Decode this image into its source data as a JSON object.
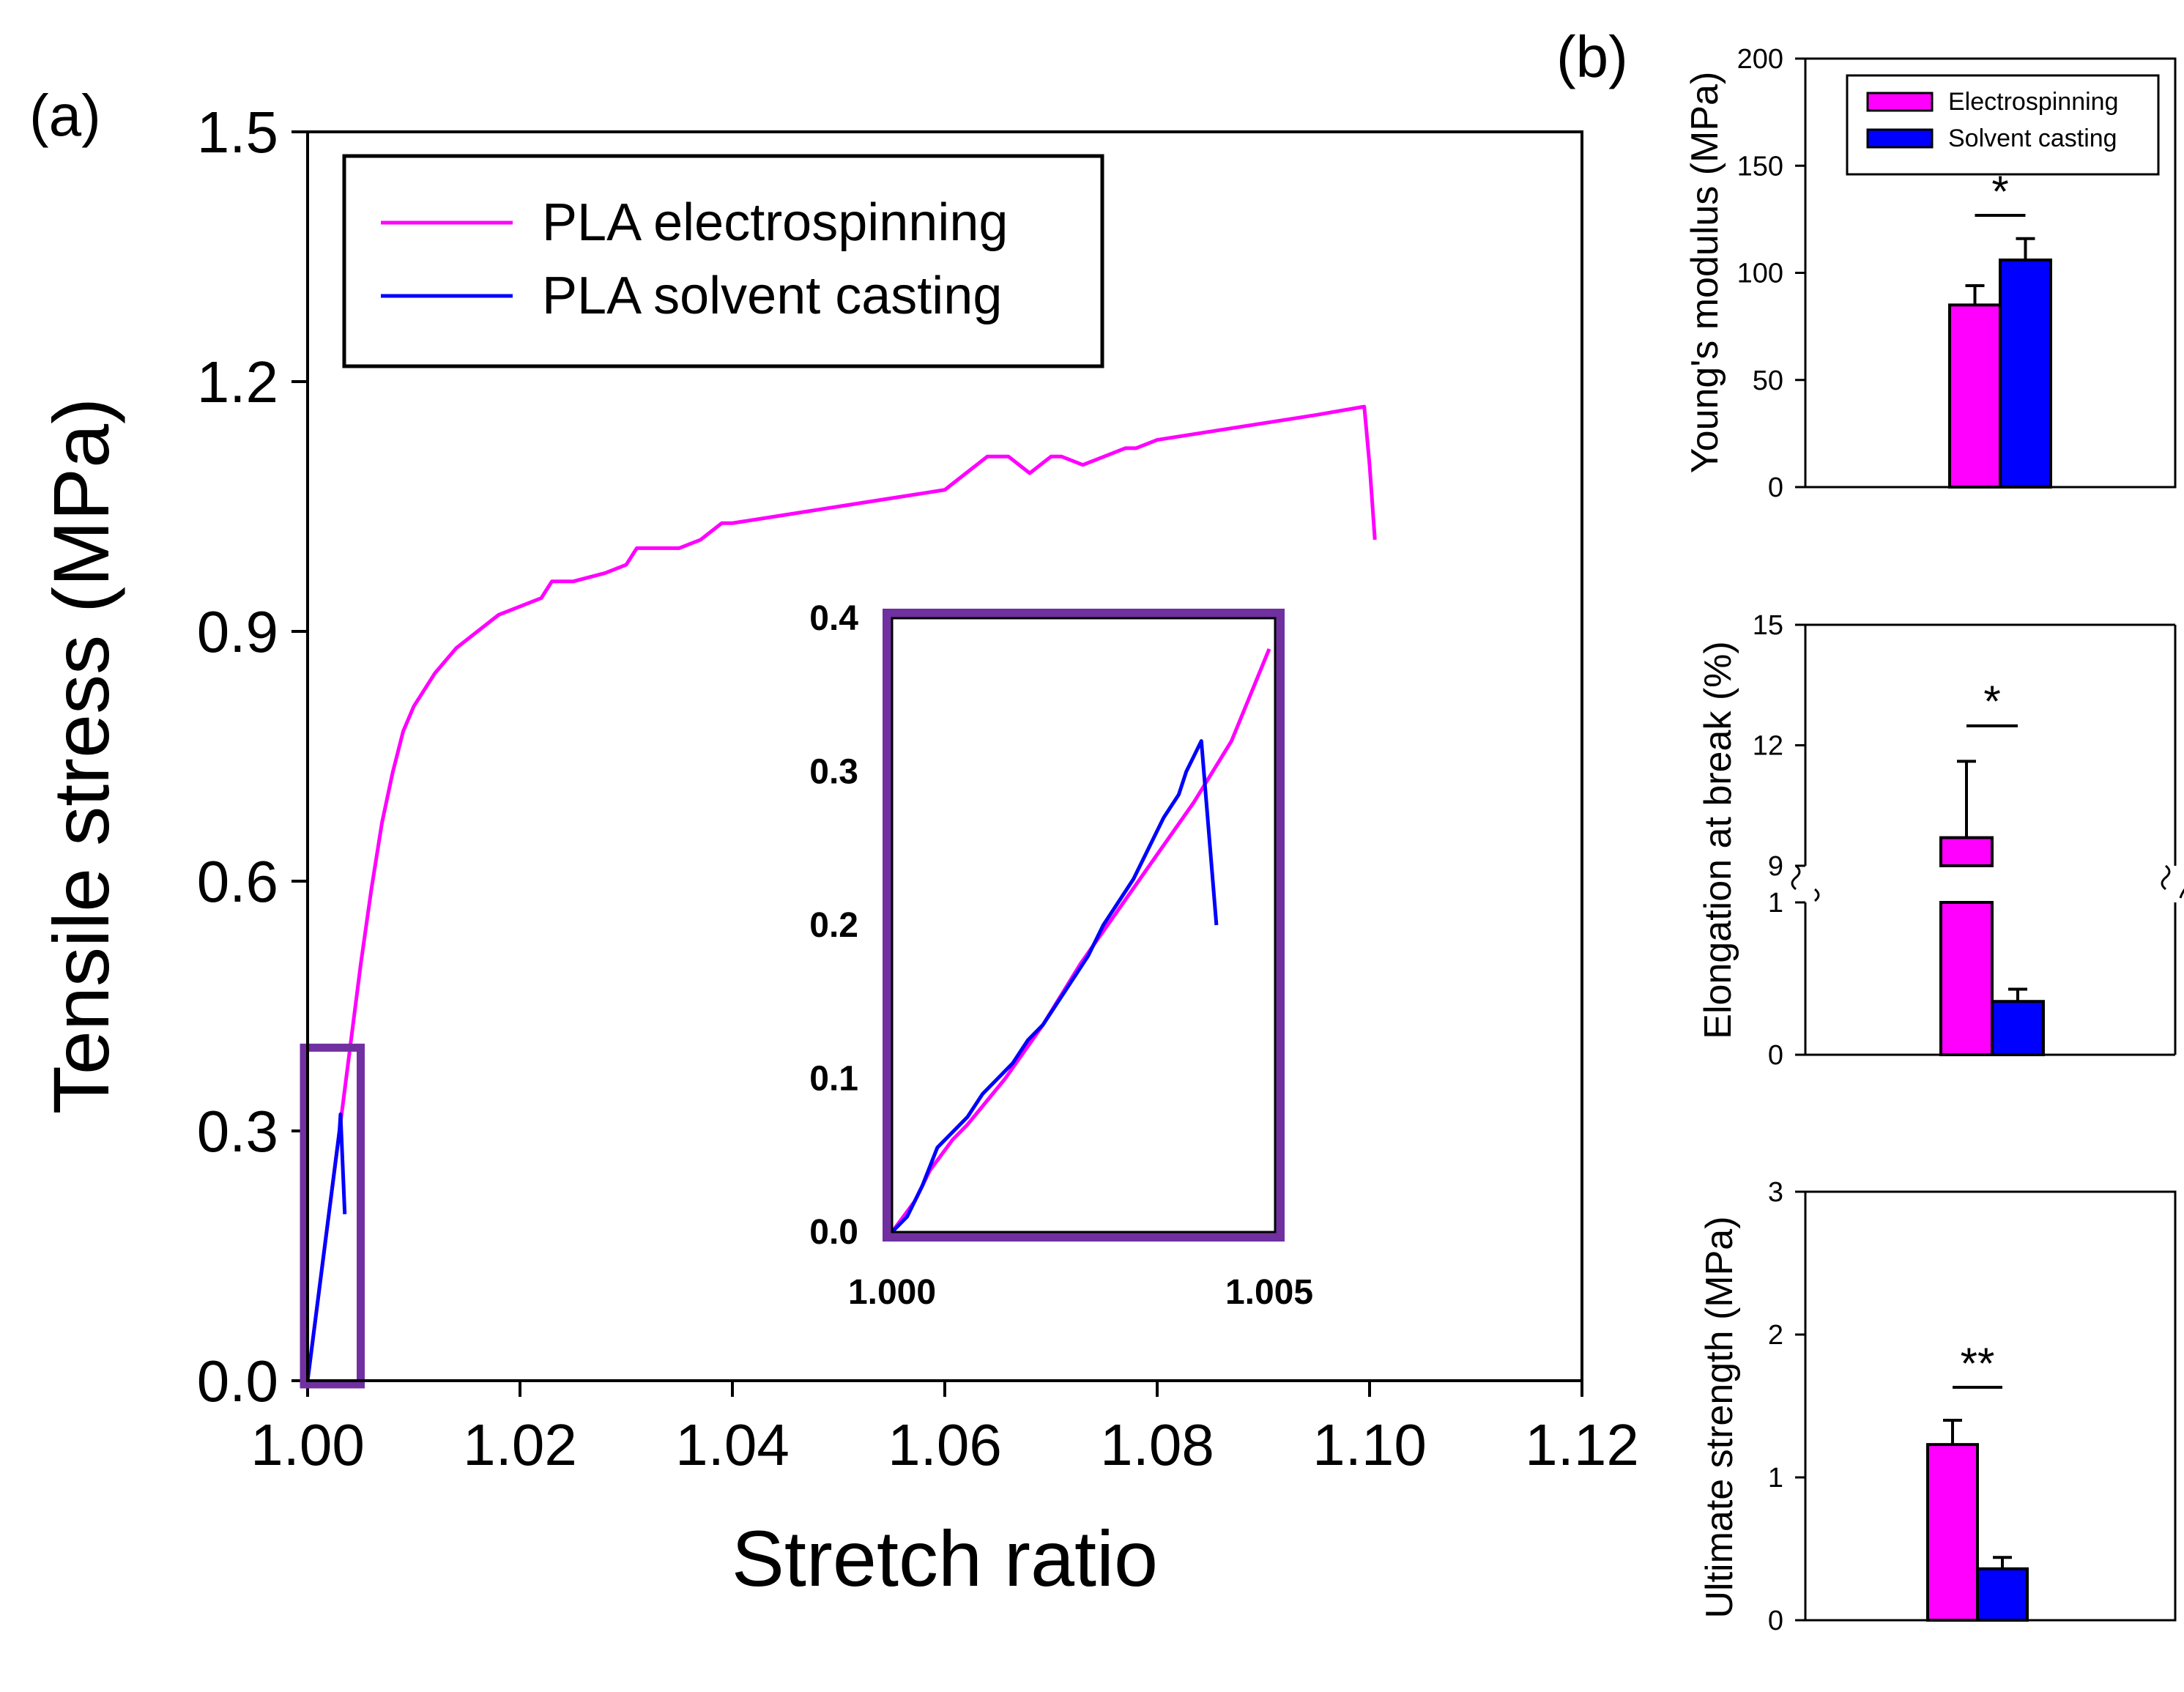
{
  "chart_data": [
    {
      "id": "a",
      "panel_label": "(a)",
      "type": "line",
      "xlabel": "Stretch ratio",
      "ylabel": "Tensile stress (MPa)",
      "xlim": [
        1.0,
        1.12
      ],
      "ylim": [
        0.0,
        1.5
      ],
      "xticks": [
        "1.00",
        "1.02",
        "1.04",
        "1.06",
        "1.08",
        "1.10",
        "1.12"
      ],
      "yticks": [
        "0.0",
        "0.3",
        "0.6",
        "0.9",
        "1.2",
        "1.5"
      ],
      "legend": {
        "position": "top-left",
        "entries": [
          "PLA electrospinning",
          "PLA solvent casting"
        ]
      },
      "series": [
        {
          "name": "PLA electrospinning",
          "color": "#ff00ff",
          "x": [
            1.0,
            1.001,
            1.002,
            1.003,
            1.004,
            1.005,
            1.006,
            1.007,
            1.008,
            1.009,
            1.01,
            1.012,
            1.014,
            1.016,
            1.018,
            1.02,
            1.022,
            1.023,
            1.025,
            1.028,
            1.03,
            1.031,
            1.033,
            1.035,
            1.037,
            1.039,
            1.04,
            1.045,
            1.05,
            1.055,
            1.06,
            1.061,
            1.063,
            1.064,
            1.066,
            1.068,
            1.07,
            1.071,
            1.073,
            1.075,
            1.077,
            1.078,
            1.08,
            1.085,
            1.09,
            1.095,
            1.0995,
            1.1,
            1.1005
          ],
          "y": [
            0.0,
            0.1,
            0.2,
            0.3,
            0.4,
            0.5,
            0.59,
            0.67,
            0.73,
            0.78,
            0.81,
            0.85,
            0.88,
            0.9,
            0.92,
            0.93,
            0.94,
            0.96,
            0.96,
            0.97,
            0.98,
            1.0,
            1.0,
            1.0,
            1.01,
            1.03,
            1.03,
            1.04,
            1.05,
            1.06,
            1.07,
            1.08,
            1.1,
            1.11,
            1.11,
            1.09,
            1.11,
            1.11,
            1.1,
            1.11,
            1.12,
            1.12,
            1.13,
            1.14,
            1.15,
            1.16,
            1.17,
            1.1,
            1.01
          ]
        },
        {
          "name": "PLA solvent casting",
          "color": "#0000ff",
          "x": [
            1.0,
            1.0005,
            1.001,
            1.0015,
            1.002,
            1.0025,
            1.003,
            1.0031,
            1.0033,
            1.0035
          ],
          "y": [
            0.0,
            0.05,
            0.1,
            0.15,
            0.2,
            0.25,
            0.3,
            0.32,
            0.26,
            0.2
          ]
        }
      ],
      "highlight_box": {
        "x_range": [
          1.0,
          1.005
        ],
        "y_range": [
          0.0,
          0.4
        ],
        "color": "#7030a0"
      },
      "inset": {
        "xlim": [
          1.0,
          1.005
        ],
        "ylim": [
          0.0,
          0.4
        ],
        "xticks": [
          "1.000",
          "1.005"
        ],
        "yticks": [
          "0.0",
          "0.1",
          "0.2",
          "0.3",
          "0.4"
        ],
        "border_color": "#7030a0",
        "series": [
          {
            "name": "PLA electrospinning",
            "color": "#ff00ff",
            "x": [
              1.0,
              1.0003,
              1.0005,
              1.0008,
              1.001,
              1.0015,
              1.002,
              1.0025,
              1.003,
              1.0035,
              1.004,
              1.0045,
              1.005
            ],
            "y": [
              0.0,
              0.02,
              0.04,
              0.06,
              0.07,
              0.1,
              0.135,
              0.175,
              0.21,
              0.245,
              0.28,
              0.32,
              0.38
            ]
          },
          {
            "name": "PLA solvent casting",
            "color": "#0000ff",
            "x": [
              1.0,
              1.0002,
              1.0004,
              1.0006,
              1.0008,
              1.001,
              1.0012,
              1.0014,
              1.0016,
              1.0018,
              1.002,
              1.0022,
              1.0024,
              1.0026,
              1.0028,
              1.003,
              1.0032,
              1.0034,
              1.0036,
              1.0038,
              1.0039,
              1.004,
              1.0041,
              1.0042,
              1.0043
            ],
            "y": [
              0.0,
              0.01,
              0.03,
              0.055,
              0.065,
              0.075,
              0.09,
              0.1,
              0.11,
              0.125,
              0.135,
              0.15,
              0.165,
              0.18,
              0.2,
              0.215,
              0.23,
              0.25,
              0.27,
              0.285,
              0.3,
              0.31,
              0.32,
              0.26,
              0.2
            ]
          }
        ]
      }
    },
    {
      "id": "b1",
      "panel_label": "(b)",
      "type": "bar",
      "ylabel": "Young's modulus (MPa)",
      "ylim": [
        0,
        200
      ],
      "yticks": [
        "0",
        "50",
        "100",
        "150",
        "200"
      ],
      "legend": {
        "position": "top-right",
        "entries": [
          "Electrospinning",
          "Solvent casting"
        ]
      },
      "series": [
        {
          "name": "Electrospinning",
          "color": "#ff00ff",
          "values": [
            85
          ],
          "error": [
            9
          ]
        },
        {
          "name": "Solvent casting",
          "color": "#0000ff",
          "values": [
            106
          ],
          "error": [
            10
          ]
        }
      ],
      "significance": "*"
    },
    {
      "id": "b2",
      "type": "bar",
      "ylabel": "Elongation at break (%)",
      "axis_break": true,
      "lower_ylim": [
        0,
        1
      ],
      "upper_ylim": [
        9,
        15
      ],
      "yticks_lower": [
        "0",
        "1"
      ],
      "yticks_upper": [
        "9",
        "12",
        "15"
      ],
      "series": [
        {
          "name": "Electrospinning",
          "color": "#ff00ff",
          "values": [
            9.7
          ],
          "error": [
            1.9
          ]
        },
        {
          "name": "Solvent casting",
          "color": "#0000ff",
          "values": [
            0.35
          ],
          "error": [
            0.08
          ]
        }
      ],
      "significance": "*"
    },
    {
      "id": "b3",
      "type": "bar",
      "ylabel": "Ultimate strength (MPa)",
      "ylim": [
        0,
        3
      ],
      "yticks": [
        "0",
        "1",
        "2",
        "3"
      ],
      "series": [
        {
          "name": "Electrospinning",
          "color": "#ff00ff",
          "values": [
            1.23
          ],
          "error": [
            0.17
          ]
        },
        {
          "name": "Solvent casting",
          "color": "#0000ff",
          "values": [
            0.36
          ],
          "error": [
            0.08
          ]
        }
      ],
      "significance": "**"
    }
  ]
}
